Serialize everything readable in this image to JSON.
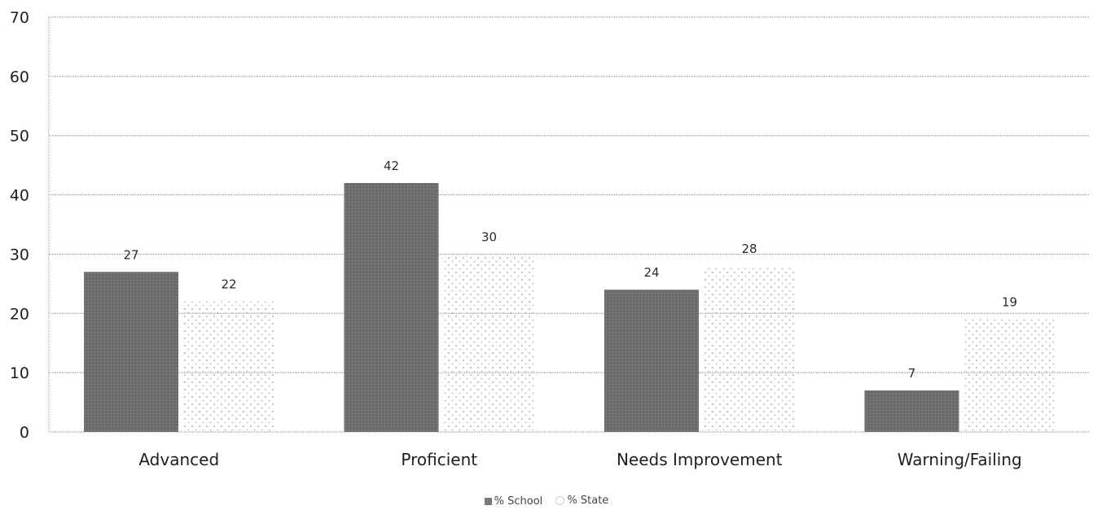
{
  "chart_data": {
    "type": "bar",
    "categories": [
      "Advanced",
      "Proficient",
      "Needs Improvement",
      "Warning/Failing"
    ],
    "series": [
      {
        "name": "% School",
        "values": [
          27,
          42,
          24,
          7
        ]
      },
      {
        "name": "% State",
        "values": [
          22,
          30,
          28,
          19
        ]
      }
    ],
    "data_labels": {
      "% School": [
        "27",
        "42",
        "24",
        "7"
      ],
      "% State": [
        "22",
        "30",
        "28",
        "19"
      ]
    },
    "ylim": [
      0,
      70
    ],
    "yticks": [
      "0",
      "10",
      "20",
      "30",
      "40",
      "50",
      "60",
      "70"
    ],
    "title": "",
    "xlabel": "",
    "ylabel": "",
    "grid": true,
    "legend": "bottom-center",
    "colors": {
      "school": "#7a7a7a",
      "state": "#bdbdbd",
      "grid": "#8a8a8a"
    }
  },
  "legend": {
    "school_label": "% School",
    "state_label": "% State"
  }
}
